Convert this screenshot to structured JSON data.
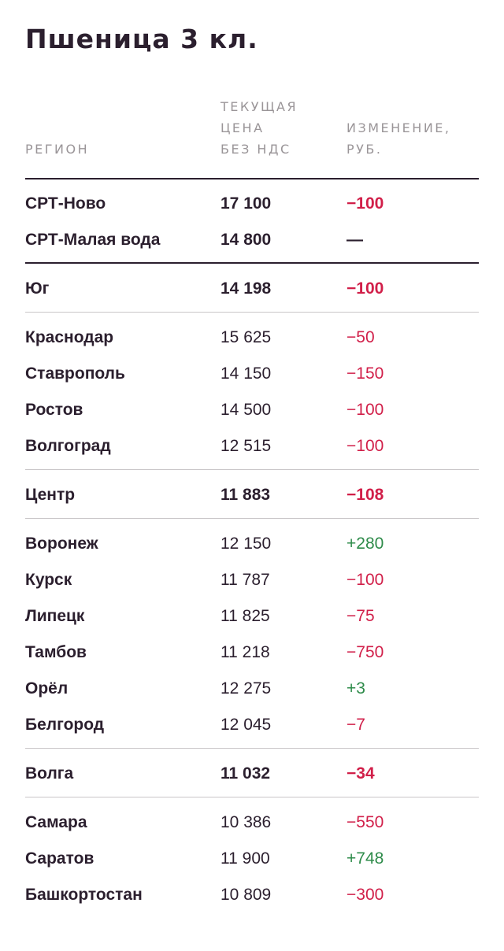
{
  "title": "Пшеница 3 кл.",
  "headers": {
    "region": "РЕГИОН",
    "price_lines": [
      "ТЕКУЩАЯ",
      "ЦЕНА",
      "БЕЗ НДС"
    ],
    "change_lines": [
      "ИЗМЕНЕНИЕ,",
      "РУБ."
    ]
  },
  "colors": {
    "negative": "#d11f49",
    "positive": "#2e8b4a",
    "text": "#2b1f2e",
    "header": "#9a9598"
  },
  "rows": [
    {
      "region": "СРТ-Ново",
      "price": "17 100",
      "change": "−100",
      "trend": "neg",
      "bold": true
    },
    {
      "region": "СРТ-Малая вода",
      "price": "14 800",
      "change": "—",
      "trend": "none",
      "bold": true
    },
    {
      "region": "Юг",
      "price": "14 198",
      "change": "−100",
      "trend": "neg",
      "bold": true
    },
    {
      "region": "Краснодар",
      "price": "15 625",
      "change": "−50",
      "trend": "neg",
      "bold": false
    },
    {
      "region": "Ставрополь",
      "price": "14 150",
      "change": "−150",
      "trend": "neg",
      "bold": false
    },
    {
      "region": "Ростов",
      "price": "14 500",
      "change": "−100",
      "trend": "neg",
      "bold": false
    },
    {
      "region": "Волгоград",
      "price": "12 515",
      "change": "−100",
      "trend": "neg",
      "bold": false
    },
    {
      "region": "Центр",
      "price": "11 883",
      "change": "−108",
      "trend": "neg",
      "bold": true
    },
    {
      "region": "Воронеж",
      "price": "12 150",
      "change": "+280",
      "trend": "pos",
      "bold": false
    },
    {
      "region": "Курск",
      "price": "11 787",
      "change": "−100",
      "trend": "neg",
      "bold": false
    },
    {
      "region": "Липецк",
      "price": "11 825",
      "change": "−75",
      "trend": "neg",
      "bold": false
    },
    {
      "region": "Тамбов",
      "price": "11 218",
      "change": "−750",
      "trend": "neg",
      "bold": false
    },
    {
      "region": "Орёл",
      "price": "12 275",
      "change": "+3",
      "trend": "pos",
      "bold": false
    },
    {
      "region": "Белгород",
      "price": "12 045",
      "change": "−7",
      "trend": "neg",
      "bold": false
    },
    {
      "region": "Волга",
      "price": "11 032",
      "change": "−34",
      "trend": "neg",
      "bold": true
    },
    {
      "region": "Самара",
      "price": "10 386",
      "change": "−550",
      "trend": "neg",
      "bold": false
    },
    {
      "region": "Саратов",
      "price": "11 900",
      "change": "+748",
      "trend": "pos",
      "bold": false
    },
    {
      "region": "Башкортостан",
      "price": "10 809",
      "change": "−300",
      "trend": "neg",
      "bold": false
    }
  ]
}
